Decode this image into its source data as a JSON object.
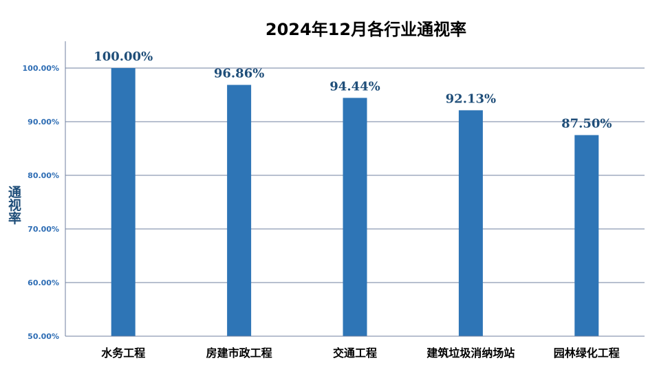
{
  "chart_data": {
    "type": "bar",
    "title": "2024年12月各行业通视率",
    "ylabel": "通视率",
    "xlabel": "",
    "categories": [
      "水务工程",
      "房建市政工程",
      "交通工程",
      "建筑垃圾消纳场站",
      "园林绿化工程"
    ],
    "values": [
      100.0,
      96.86,
      94.44,
      92.13,
      87.5
    ],
    "data_labels": [
      "100.00%",
      "96.86%",
      "94.44%",
      "92.13%",
      "87.50%"
    ],
    "ylim": [
      50,
      100
    ],
    "yticks": [
      50,
      60,
      70,
      80,
      90,
      100
    ],
    "ytick_labels": [
      "50.00%",
      "60.00%",
      "70.00%",
      "80.00%",
      "90.00%",
      "100.00%"
    ],
    "grid": true,
    "legend": "none",
    "bar_color": "#2E75B6"
  }
}
